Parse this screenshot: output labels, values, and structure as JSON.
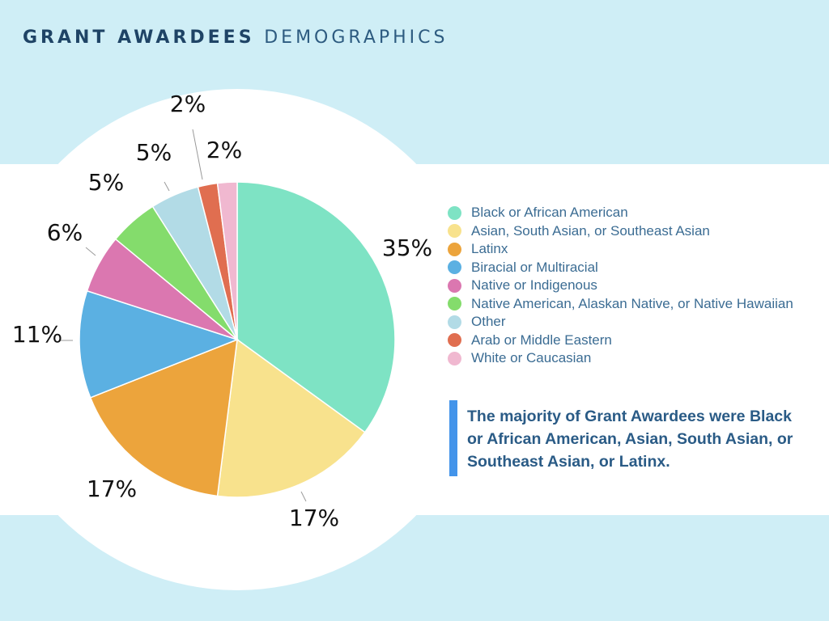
{
  "header": {
    "title_bold": "GRANT AWARDEES",
    "title_light": "DEMOGRAPHICS"
  },
  "callout": {
    "text": "The majority of Grant Awardees were Black or African American, Asian, South Asian, or Southeast Asian, or Latinx."
  },
  "colors": {
    "background": "#cfeef6",
    "band": "#ffffff",
    "accent_bar": "#4394ea",
    "title": "#1f4466",
    "legend_text": "#3b6c93"
  },
  "chart_data": {
    "type": "pie",
    "title": "",
    "start": "12 o'clock",
    "direction": "clockwise",
    "legend_placement": "right",
    "slices": [
      {
        "label": "Black or African American",
        "value": 35,
        "display": "35%",
        "color": "#7ee3c4"
      },
      {
        "label": "Asian, South Asian, or Southeast Asian",
        "value": 17,
        "display": "17%",
        "color": "#f8e28d"
      },
      {
        "label": "Latinx",
        "value": 17,
        "display": "17%",
        "color": "#eca43c"
      },
      {
        "label": "Biracial or Multiracial",
        "value": 11,
        "display": "11%",
        "color": "#5bb0e2"
      },
      {
        "label": "Native or Indigenous",
        "value": 6,
        "display": "6%",
        "color": "#db77b0"
      },
      {
        "label": "Native American, Alaskan Native, or Native Hawaiian",
        "value": 5,
        "display": "5%",
        "color": "#84dc6c"
      },
      {
        "label": "Other",
        "value": 5,
        "display": "5%",
        "color": "#b2dbe6"
      },
      {
        "label": "Arab or Middle Eastern",
        "value": 2,
        "display": "2%",
        "color": "#e06e50"
      },
      {
        "label": "White or Caucasian",
        "value": 2,
        "display": "2%",
        "color": "#f0b8d0"
      }
    ]
  }
}
